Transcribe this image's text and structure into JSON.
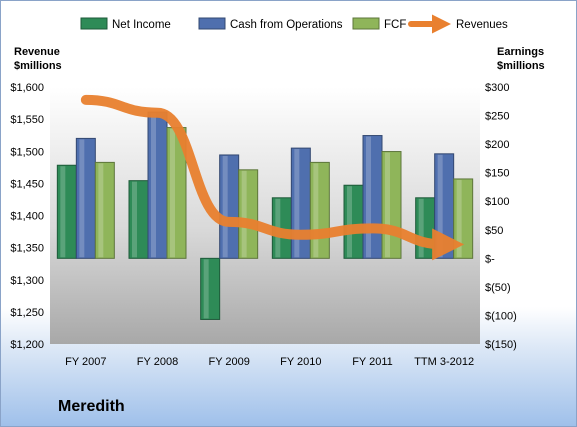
{
  "chart_data": {
    "type": "bar",
    "categories": [
      "FY 2007",
      "FY 2008",
      "FY 2009",
      "FY 2010",
      "FY 2011",
      "TTM 3-2012"
    ],
    "series": [
      {
        "name": "Net Income",
        "axis": "right",
        "color": "#2e8b57",
        "values": [
          163,
          136,
          -107,
          106,
          128,
          106
        ]
      },
      {
        "name": "Cash from Operations",
        "axis": "right",
        "color": "#4f6fae",
        "values": [
          210,
          256,
          181,
          193,
          215,
          183
        ]
      },
      {
        "name": "FCF",
        "axis": "right",
        "color": "#8fb55a",
        "values": [
          168,
          229,
          155,
          168,
          187,
          139
        ]
      },
      {
        "name": "Revenues",
        "axis": "left",
        "color": "#e9802f",
        "values": [
          1580,
          1560,
          1390,
          1370,
          1380,
          1355
        ]
      }
    ],
    "left_axis": {
      "label": "Revenue\n$millions",
      "min": 1200,
      "max": 1600,
      "ticks": [
        1600,
        1550,
        1500,
        1450,
        1400,
        1350,
        1300,
        1250,
        1200
      ],
      "tick_labels": [
        "$1,600",
        "$1,550",
        "$1,500",
        "$1,450",
        "$1,400",
        "$1,350",
        "$1,300",
        "$1,250",
        "$1,200"
      ]
    },
    "right_axis": {
      "label": "Earnings\n$millions",
      "min": -150,
      "max": 300,
      "ticks": [
        300,
        250,
        200,
        150,
        100,
        50,
        0,
        -50,
        -100,
        -150
      ],
      "tick_labels": [
        "$300",
        "$250",
        "$200",
        "$150",
        "$100",
        "$50",
        "$-",
        "$(50)",
        "$(100)",
        "$(150)"
      ]
    },
    "legend_position": "top",
    "grid": false
  },
  "company_name": "Meredith"
}
